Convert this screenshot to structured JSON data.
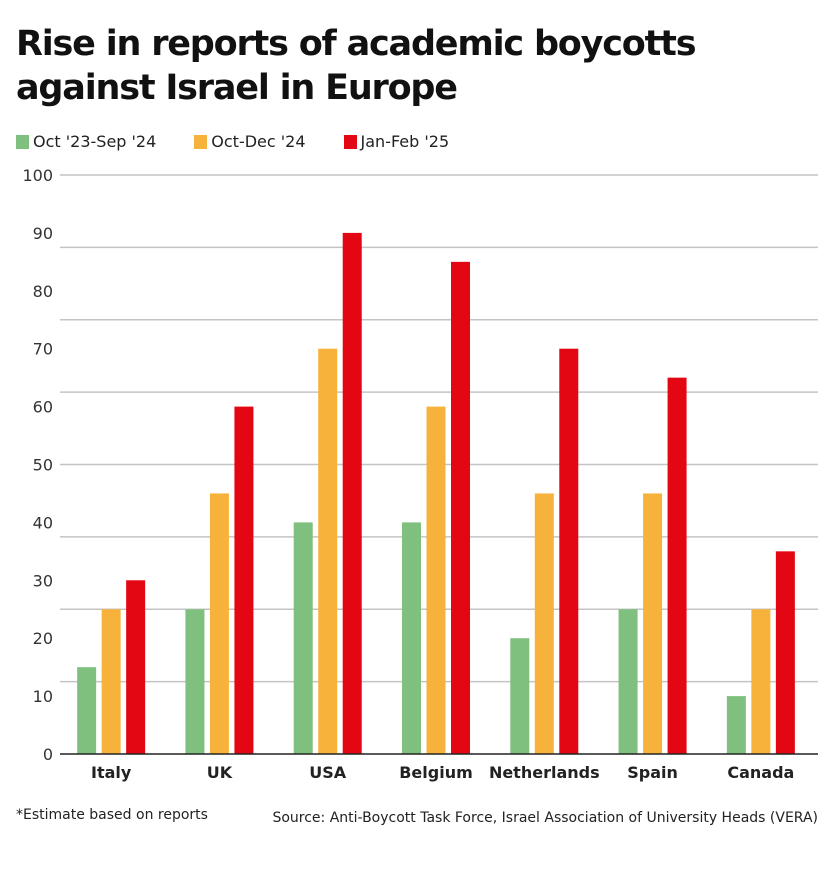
{
  "title": "Rise in reports of academic boycotts against Israel in Europe",
  "footnote": "*Estimate based on reports",
  "source": "Source: Anti-Boycott Task Force, Israel Association of University Heads (VERA)",
  "chart_data": {
    "type": "bar",
    "title": "Rise in reports of academic boycotts against Israel in Europe",
    "xlabel": "",
    "ylabel": "",
    "ylim": [
      0,
      100
    ],
    "yticks": [
      0,
      10,
      20,
      30,
      40,
      50,
      60,
      70,
      80,
      90,
      100
    ],
    "gridlines": [
      0,
      12.5,
      25,
      37.5,
      50,
      62.5,
      75,
      87.5,
      100
    ],
    "grid": true,
    "legend_position": "top-left",
    "categories": [
      "Italy",
      "UK",
      "USA",
      "Belgium",
      "Netherlands",
      "Spain",
      "Canada"
    ],
    "series": [
      {
        "name": "Oct '23-Sep '24",
        "color": "#7fc07f",
        "values": [
          15,
          25,
          40,
          40,
          20,
          25,
          10
        ]
      },
      {
        "name": "Oct-Dec '24",
        "color": "#f7b23b",
        "values": [
          25,
          45,
          70,
          60,
          45,
          45,
          25
        ]
      },
      {
        "name": "Jan-Feb '25",
        "color": "#e30613",
        "values": [
          30,
          60,
          90,
          85,
          70,
          65,
          35
        ]
      }
    ]
  }
}
